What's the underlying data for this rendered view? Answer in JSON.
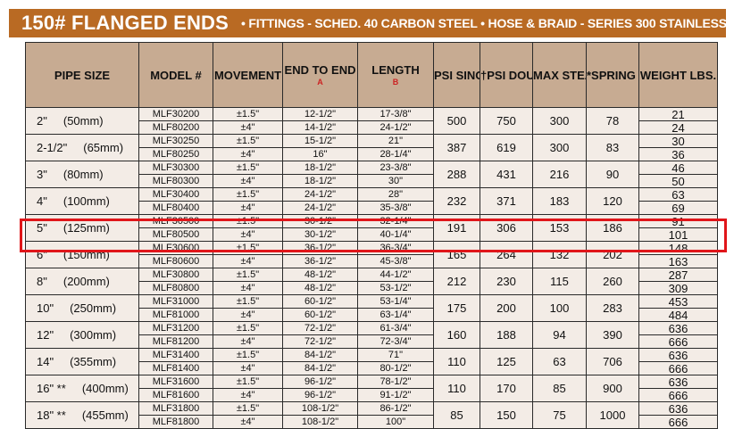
{
  "banner": {
    "title": "150# FLANGED ENDS",
    "subtitle": "•  FITTINGS - SCHED. 40 CARBON STEEL  •  HOSE & BRAID - SERIES 300 STAINLESS STEEL"
  },
  "headers": {
    "pipe_size": "PIPE SIZE",
    "model": "MODEL #",
    "movement": "MOVEMENT",
    "end_to_end": "END TO END",
    "end_to_end_marker": "A",
    "length": "LENGTH",
    "length_marker": "B",
    "psi_single": "PSI SINGLE BRAID",
    "psi_double": "†PSI DOUBLE BRAID",
    "max_steam": "MAX STEAM PRESS.",
    "spring_force": "*SPRING FORCE LBS.",
    "weight": "WEIGHT LBS."
  },
  "highlight_color": "#e0161a",
  "rows": [
    {
      "size": "2\"",
      "mm": "(50mm)",
      "models": [
        "MLF30200",
        "MLF80200"
      ],
      "movement": [
        "±1.5\"",
        "±4\""
      ],
      "end_to_end": [
        "12-1/2\"",
        "14-1/2\""
      ],
      "length": [
        "17-3/8\"",
        "24-1/2\""
      ],
      "psi_single": "500",
      "psi_double": "750",
      "max_steam": "300",
      "spring_force": "78",
      "weight": [
        "21",
        "24"
      ]
    },
    {
      "size": "2-1/2\"",
      "mm": "(65mm)",
      "models": [
        "MLF30250",
        "MLF80250"
      ],
      "movement": [
        "±1.5\"",
        "±4\""
      ],
      "end_to_end": [
        "15-1/2\"",
        "16\""
      ],
      "length": [
        "21\"",
        "28-1/4\""
      ],
      "psi_single": "387",
      "psi_double": "619",
      "max_steam": "300",
      "spring_force": "83",
      "weight": [
        "30",
        "36"
      ]
    },
    {
      "size": "3\"",
      "mm": "(80mm)",
      "models": [
        "MLF30300",
        "MLF80300"
      ],
      "movement": [
        "±1.5\"",
        "±4\""
      ],
      "end_to_end": [
        "18-1/2\"",
        "18-1/2\""
      ],
      "length": [
        "23-3/8\"",
        "30\""
      ],
      "psi_single": "288",
      "psi_double": "431",
      "max_steam": "216",
      "spring_force": "90",
      "weight": [
        "46",
        "50"
      ]
    },
    {
      "size": "4\"",
      "mm": "(100mm)",
      "models": [
        "MLF30400",
        "MLF80400"
      ],
      "movement": [
        "±1.5\"",
        "±4\""
      ],
      "end_to_end": [
        "24-1/2\"",
        "24-1/2\""
      ],
      "length": [
        "28\"",
        "35-3/8\""
      ],
      "psi_single": "232",
      "psi_double": "371",
      "max_steam": "183",
      "spring_force": "120",
      "weight": [
        "63",
        "69"
      ]
    },
    {
      "size": "5\"",
      "mm": "(125mm)",
      "models": [
        "MLF30500",
        "MLF80500"
      ],
      "movement": [
        "±1.5\"",
        "±4\""
      ],
      "end_to_end": [
        "30-1/2\"",
        "30-1/2\""
      ],
      "length": [
        "32-1/4\"",
        "40-1/4\""
      ],
      "psi_single": "191",
      "psi_double": "306",
      "max_steam": "153",
      "spring_force": "186",
      "weight": [
        "91",
        "101"
      ]
    },
    {
      "size": "6\"",
      "mm": "(150mm)",
      "models": [
        "MLF30600",
        "MLF80600"
      ],
      "movement": [
        "±1.5\"",
        "±4\""
      ],
      "end_to_end": [
        "36-1/2\"",
        "36-1/2\""
      ],
      "length": [
        "36-3/4\"",
        "45-3/8\""
      ],
      "psi_single": "165",
      "psi_double": "264",
      "max_steam": "132",
      "spring_force": "202",
      "weight": [
        "148",
        "163"
      ]
    },
    {
      "size": "8\"",
      "mm": "(200mm)",
      "models": [
        "MLF30800",
        "MLF80800"
      ],
      "movement": [
        "±1.5\"",
        "±4\""
      ],
      "end_to_end": [
        "48-1/2\"",
        "48-1/2\""
      ],
      "length": [
        "44-1/2\"",
        "53-1/2\""
      ],
      "psi_single": "212",
      "psi_double": "230",
      "max_steam": "115",
      "spring_force": "260",
      "weight": [
        "287",
        "309"
      ]
    },
    {
      "size": "10\"",
      "mm": "(250mm)",
      "models": [
        "MLF31000",
        "MLF81000"
      ],
      "movement": [
        "±1.5\"",
        "±4\""
      ],
      "end_to_end": [
        "60-1/2\"",
        "60-1/2\""
      ],
      "length": [
        "53-1/4\"",
        "63-1/4\""
      ],
      "psi_single": "175",
      "psi_double": "200",
      "max_steam": "100",
      "spring_force": "283",
      "weight": [
        "453",
        "484"
      ]
    },
    {
      "size": "12\"",
      "mm": "(300mm)",
      "models": [
        "MLF31200",
        "MLF81200"
      ],
      "movement": [
        "±1.5\"",
        "±4\""
      ],
      "end_to_end": [
        "72-1/2\"",
        "72-1/2\""
      ],
      "length": [
        "61-3/4\"",
        "72-3/4\""
      ],
      "psi_single": "160",
      "psi_double": "188",
      "max_steam": "94",
      "spring_force": "390",
      "weight": [
        "636",
        "666"
      ]
    },
    {
      "size": "14\"",
      "mm": "(355mm)",
      "models": [
        "MLF31400",
        "MLF81400"
      ],
      "movement": [
        "±1.5\"",
        "±4\""
      ],
      "end_to_end": [
        "84-1/2\"",
        "84-1/2\""
      ],
      "length": [
        "71\"",
        "80-1/2\""
      ],
      "psi_single": "110",
      "psi_double": "125",
      "max_steam": "63",
      "spring_force": "706",
      "weight": [
        "636",
        "666"
      ]
    },
    {
      "size": "16\" **",
      "mm": "(400mm)",
      "models": [
        "MLF31600",
        "MLF81600"
      ],
      "movement": [
        "±1.5\"",
        "±4\""
      ],
      "end_to_end": [
        "96-1/2\"",
        "96-1/2\""
      ],
      "length": [
        "78-1/2\"",
        "91-1/2\""
      ],
      "psi_single": "110",
      "psi_double": "170",
      "max_steam": "85",
      "spring_force": "900",
      "weight": [
        "636",
        "666"
      ]
    },
    {
      "size": "18\" **",
      "mm": "(455mm)",
      "models": [
        "MLF31800",
        "MLF81800"
      ],
      "movement": [
        "±1.5\"",
        "±4\""
      ],
      "end_to_end": [
        "108-1/2\"",
        "108-1/2\""
      ],
      "length": [
        "86-1/2\"",
        "100\""
      ],
      "psi_single": "85",
      "psi_double": "150",
      "max_steam": "75",
      "spring_force": "1000",
      "weight": [
        "636",
        "666"
      ]
    }
  ]
}
